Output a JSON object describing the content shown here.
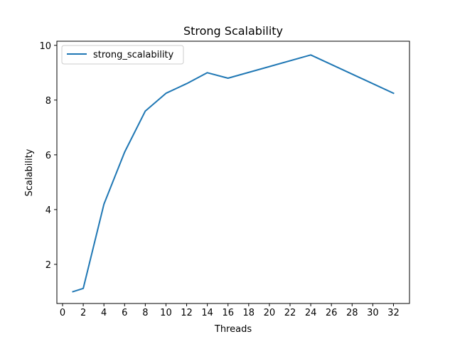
{
  "chart_data": {
    "type": "line",
    "title": "Strong Scalability",
    "xlabel": "Threads",
    "ylabel": "Scalability",
    "xlim": [
      -0.55,
      33.55
    ],
    "ylim": [
      0.57,
      10.15
    ],
    "xticks": [
      0,
      2,
      4,
      6,
      8,
      10,
      12,
      14,
      16,
      18,
      20,
      22,
      24,
      26,
      28,
      30,
      32
    ],
    "yticks": [
      2,
      4,
      6,
      8,
      10
    ],
    "grid": false,
    "legend_position": "top-left",
    "series": [
      {
        "name": "strong_scalability",
        "color": "#1f77b4",
        "x": [
          1,
          2,
          4,
          6,
          8,
          10,
          12,
          14,
          16,
          24,
          32
        ],
        "y": [
          1.0,
          1.12,
          4.2,
          6.1,
          7.6,
          8.25,
          8.6,
          9.0,
          8.8,
          9.65,
          8.25
        ]
      }
    ]
  }
}
